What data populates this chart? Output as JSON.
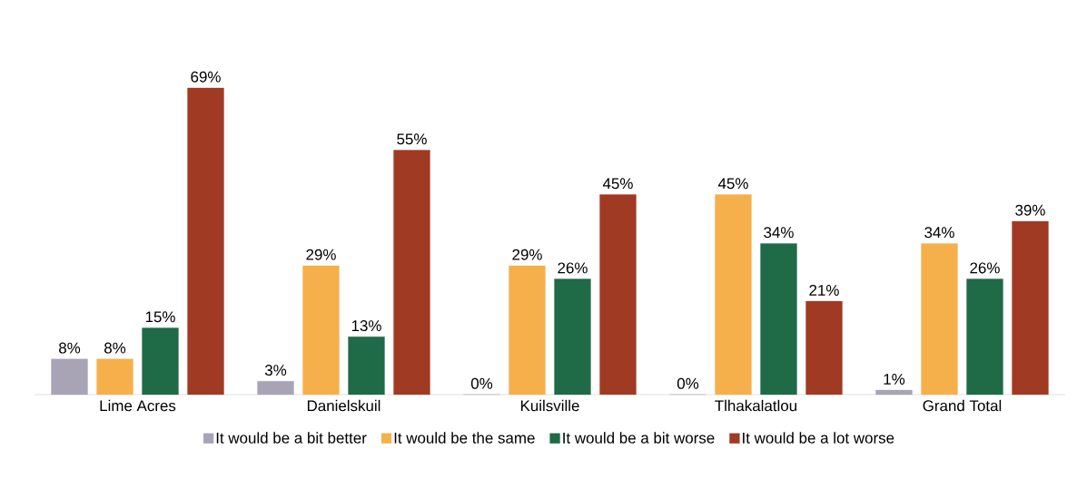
{
  "chart_data": {
    "type": "bar",
    "categories": [
      "Lime Acres",
      "Danielskuil",
      "Kuilsville",
      "Tlhakalatlou",
      "Grand Total"
    ],
    "series": [
      {
        "name": "It would be a bit better",
        "color": "#a8a4b6",
        "values": [
          8,
          3,
          0,
          0,
          1
        ],
        "value_labels": [
          "8%",
          "3%",
          "0%",
          "0%",
          "1%"
        ]
      },
      {
        "name": "It would be the same",
        "color": "#f5b04c",
        "values": [
          8,
          29,
          29,
          45,
          34
        ],
        "value_labels": [
          "8%",
          "29%",
          "29%",
          "45%",
          "34%"
        ]
      },
      {
        "name": "It would be a bit worse",
        "color": "#1f6a47",
        "values": [
          15,
          13,
          26,
          34,
          26
        ],
        "value_labels": [
          "15%",
          "13%",
          "26%",
          "34%",
          "26%"
        ]
      },
      {
        "name": "It would be a lot worse",
        "color": "#a13a23",
        "values": [
          69,
          55,
          45,
          21,
          39
        ],
        "value_labels": [
          "69%",
          "55%",
          "45%",
          "21%",
          "39%"
        ]
      }
    ],
    "legend": "bottom"
  }
}
